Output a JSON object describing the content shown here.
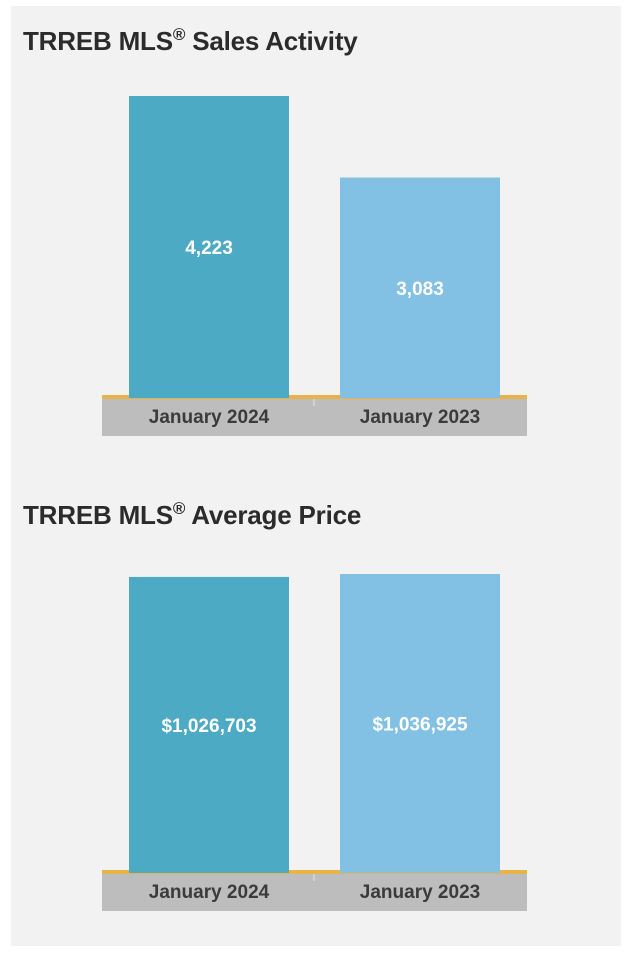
{
  "chart_data": [
    {
      "type": "bar",
      "title": "TRREB MLS",
      "title_mark": "®",
      "title_rest": " Sales Activity",
      "categories": [
        "January 2024",
        "January 2023"
      ],
      "values": [
        4223,
        3083
      ],
      "value_labels": [
        "4,223",
        "3,083"
      ],
      "colors": [
        "#4caac4",
        "#82c1e4"
      ],
      "ylim": [
        0,
        4223
      ]
    },
    {
      "type": "bar",
      "title": "TRREB MLS",
      "title_mark": "®",
      "title_rest": " Average Price",
      "categories": [
        "January 2024",
        "January 2023"
      ],
      "values": [
        1026703,
        1036925
      ],
      "value_labels": [
        "$1,026,703",
        "$1,036,925"
      ],
      "colors": [
        "#4caac4",
        "#82c1e4"
      ],
      "ylim": [
        0,
        1036925
      ]
    }
  ]
}
